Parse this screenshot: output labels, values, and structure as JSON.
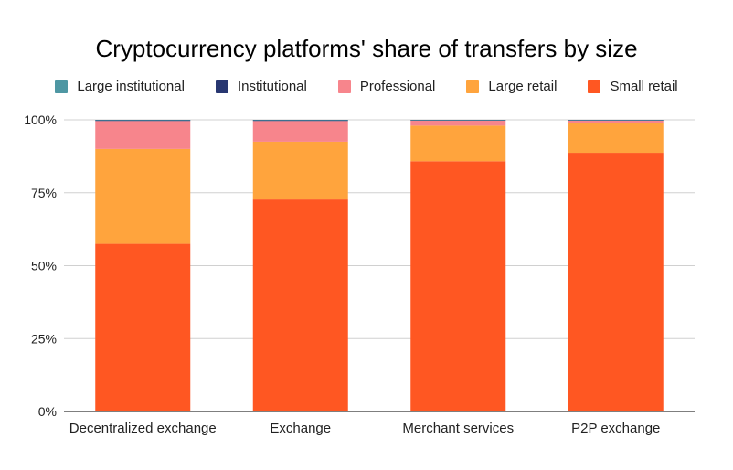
{
  "chart_data": {
    "type": "bar",
    "stacked": true,
    "title": "Cryptocurrency platforms' share of transfers by size",
    "xlabel": "",
    "ylabel": "",
    "categories": [
      "Decentralized exchange",
      "Exchange",
      "Merchant services",
      "P2P exchange"
    ],
    "series": [
      {
        "name": "Small retail",
        "color": "#ff5722",
        "values": [
          57.5,
          72.7,
          85.8,
          88.7
        ]
      },
      {
        "name": "Large retail",
        "color": "#ffa43d",
        "values": [
          32.5,
          19.8,
          12.2,
          10.3
        ]
      },
      {
        "name": "Professional",
        "color": "#f7858c",
        "values": [
          9.6,
          7.1,
          1.8,
          0.8
        ]
      },
      {
        "name": "Institutional",
        "color": "#283771",
        "values": [
          0.3,
          0.3,
          0.1,
          0.1
        ]
      },
      {
        "name": "Large institutional",
        "color": "#4e97a3",
        "values": [
          0.1,
          0.1,
          0.1,
          0.1
        ]
      }
    ],
    "legend_order": [
      "Large institutional",
      "Institutional",
      "Professional",
      "Large retail",
      "Small retail"
    ],
    "ylim": [
      0,
      100
    ],
    "yticks": [
      "0%",
      "25%",
      "50%",
      "75%",
      "100%"
    ],
    "grid": true,
    "legend_position": "top"
  }
}
